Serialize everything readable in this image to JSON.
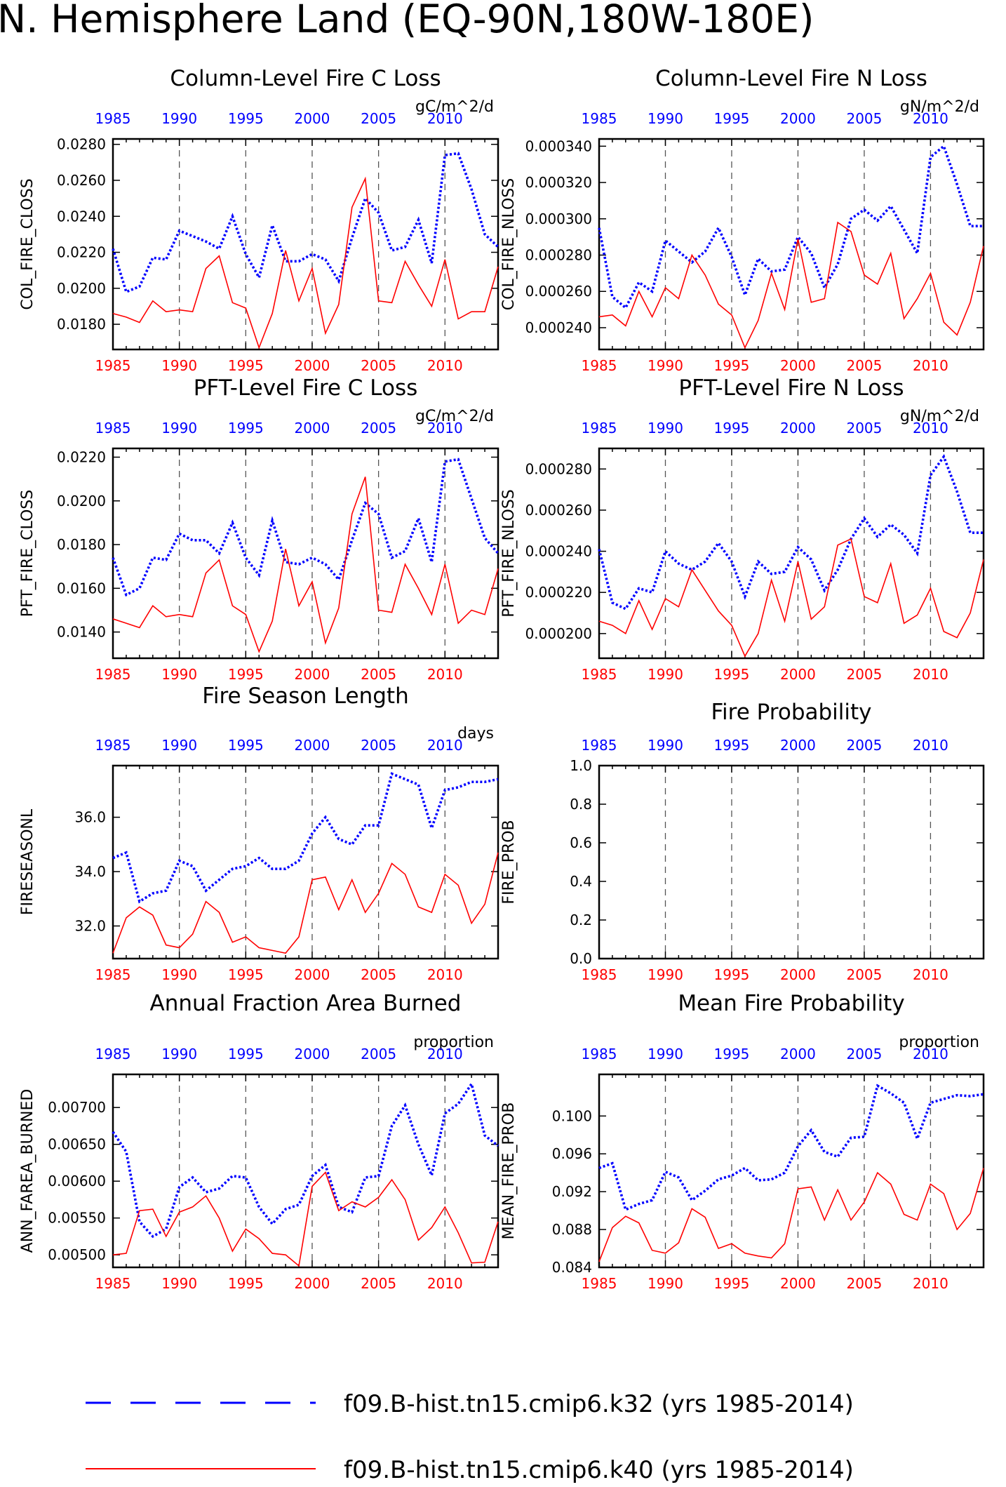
{
  "page_title": "N. Hemisphere Land (EQ-90N,180W-180E)",
  "colors": {
    "case1": "#0000ff",
    "case2": "#ff0000",
    "axis": "#000000",
    "grid": "#555555"
  },
  "legend": {
    "items": [
      {
        "label": "f09.B-hist.tn15.cmip6.k32 (yrs 1985-2014)",
        "color": "#0000ff",
        "style": "dashed"
      },
      {
        "label": "f09.B-hist.tn15.cmip6.k40 (yrs 1985-2014)",
        "color": "#ff0000",
        "style": "solid"
      }
    ]
  },
  "chart_data": [
    {
      "type": "line",
      "title": "Column-Level Fire C Loss",
      "ylabel": "COL_FIRE_CLOSS",
      "units": "gC/m^2/d",
      "xlim": [
        1985,
        2014
      ],
      "ylim": [
        0.0166,
        0.0283
      ],
      "yticks": [
        "0.0180",
        "0.0200",
        "0.0220",
        "0.0240",
        "0.0260",
        "0.0280"
      ],
      "xticks": [
        "1985",
        "1990",
        "1995",
        "2000",
        "2005",
        "2010"
      ],
      "grid": "dashed vertical at 1990, 1995, 2000, 2005, 2010",
      "x": [
        1985,
        1986,
        1987,
        1988,
        1989,
        1990,
        1991,
        1992,
        1993,
        1994,
        1995,
        1996,
        1997,
        1998,
        1999,
        2000,
        2001,
        2002,
        2003,
        2004,
        2005,
        2006,
        2007,
        2008,
        2009,
        2010,
        2011,
        2012,
        2013,
        2014
      ],
      "series": [
        {
          "values": [
            0.0222,
            0.0198,
            0.0201,
            0.0217,
            0.0216,
            0.0232,
            0.0229,
            0.0226,
            0.0222,
            0.024,
            0.0219,
            0.0206,
            0.0235,
            0.0215,
            0.0215,
            0.0219,
            0.0216,
            0.0204,
            0.0228,
            0.025,
            0.0242,
            0.0221,
            0.0223,
            0.0238,
            0.0214,
            0.0274,
            0.0275,
            0.0255,
            0.023,
            0.0223
          ]
        },
        {
          "values": [
            0.0186,
            0.0184,
            0.0181,
            0.0193,
            0.0187,
            0.0188,
            0.0187,
            0.0211,
            0.0218,
            0.0192,
            0.0189,
            0.0167,
            0.0186,
            0.0221,
            0.0193,
            0.0211,
            0.0175,
            0.0191,
            0.0245,
            0.0261,
            0.0193,
            0.0192,
            0.0215,
            0.0202,
            0.019,
            0.0216,
            0.0183,
            0.0187,
            0.0187,
            0.0212
          ]
        }
      ]
    },
    {
      "type": "line",
      "title": "Column-Level Fire N Loss",
      "ylabel": "COL_FIRE_NLOSS",
      "units": "gN/m^2/d",
      "xlim": [
        1985,
        2014
      ],
      "ylim": [
        0.000228,
        0.000344
      ],
      "yticks": [
        "0.000240",
        "0.000260",
        "0.000280",
        "0.000300",
        "0.000320",
        "0.000340"
      ],
      "xticks": [
        "1985",
        "1990",
        "1995",
        "2000",
        "2005",
        "2010"
      ],
      "grid": "dashed vertical at 1990, 1995, 2000, 2005, 2010",
      "x": [
        1985,
        1986,
        1987,
        1988,
        1989,
        1990,
        1991,
        1992,
        1993,
        1994,
        1995,
        1996,
        1997,
        1998,
        1999,
        2000,
        2001,
        2002,
        2003,
        2004,
        2005,
        2006,
        2007,
        2008,
        2009,
        2010,
        2011,
        2012,
        2013,
        2014
      ],
      "series": [
        {
          "values": [
            0.000295,
            0.000257,
            0.000251,
            0.000265,
            0.00026,
            0.000288,
            0.000282,
            0.000276,
            0.000282,
            0.000295,
            0.000279,
            0.000258,
            0.000278,
            0.000271,
            0.000272,
            0.00029,
            0.000281,
            0.000262,
            0.000275,
            0.0003,
            0.000305,
            0.000299,
            0.000307,
            0.000294,
            0.000281,
            0.000334,
            0.00034,
            0.000319,
            0.000296,
            0.000296
          ]
        },
        {
          "values": [
            0.000246,
            0.000247,
            0.000241,
            0.00026,
            0.000246,
            0.000262,
            0.000256,
            0.00028,
            0.000269,
            0.000253,
            0.000247,
            0.000229,
            0.000244,
            0.00027,
            0.00025,
            0.000289,
            0.000254,
            0.000256,
            0.000298,
            0.000293,
            0.000269,
            0.000264,
            0.000281,
            0.000245,
            0.000256,
            0.00027,
            0.000243,
            0.000236,
            0.000254,
            0.000285
          ]
        }
      ]
    },
    {
      "type": "line",
      "title": "PFT-Level Fire C Loss",
      "ylabel": "PFT_FIRE_CLOSS",
      "units": "gC/m^2/d",
      "xlim": [
        1985,
        2014
      ],
      "ylim": [
        0.0128,
        0.0224
      ],
      "yticks": [
        "0.0140",
        "0.0160",
        "0.0180",
        "0.0200",
        "0.0220"
      ],
      "xticks": [
        "1985",
        "1990",
        "1995",
        "2000",
        "2005",
        "2010"
      ],
      "grid": "dashed vertical at 1990, 1995, 2000, 2005, 2010",
      "x": [
        1985,
        1986,
        1987,
        1988,
        1989,
        1990,
        1991,
        1992,
        1993,
        1994,
        1995,
        1996,
        1997,
        1998,
        1999,
        2000,
        2001,
        2002,
        2003,
        2004,
        2005,
        2006,
        2007,
        2008,
        2009,
        2010,
        2011,
        2012,
        2013,
        2014
      ],
      "series": [
        {
          "values": [
            0.0174,
            0.0157,
            0.016,
            0.0174,
            0.0173,
            0.0185,
            0.0182,
            0.0182,
            0.0176,
            0.019,
            0.0174,
            0.0166,
            0.0191,
            0.0172,
            0.0171,
            0.0174,
            0.0171,
            0.0164,
            0.0182,
            0.0199,
            0.0194,
            0.0174,
            0.0177,
            0.0192,
            0.0172,
            0.0218,
            0.0219,
            0.0201,
            0.0183,
            0.0176
          ]
        },
        {
          "values": [
            0.0146,
            0.0144,
            0.0142,
            0.0152,
            0.0147,
            0.0148,
            0.0147,
            0.0167,
            0.0173,
            0.0152,
            0.0148,
            0.0131,
            0.0145,
            0.0178,
            0.0152,
            0.0163,
            0.0135,
            0.0151,
            0.0194,
            0.0211,
            0.015,
            0.0149,
            0.0171,
            0.016,
            0.0148,
            0.0171,
            0.0144,
            0.015,
            0.0148,
            0.0169
          ]
        }
      ]
    },
    {
      "type": "line",
      "title": "PFT-Level Fire N Loss",
      "ylabel": "PFT_FIRE_NLOSS",
      "units": "gN/m^2/d",
      "xlim": [
        1985,
        2014
      ],
      "ylim": [
        0.000188,
        0.00029
      ],
      "yticks": [
        "0.000200",
        "0.000220",
        "0.000240",
        "0.000260",
        "0.000280"
      ],
      "xticks": [
        "1985",
        "1990",
        "1995",
        "2000",
        "2005",
        "2010"
      ],
      "grid": "dashed vertical at 1990, 1995, 2000, 2005, 2010",
      "x": [
        1985,
        1986,
        1987,
        1988,
        1989,
        1990,
        1991,
        1992,
        1993,
        1994,
        1995,
        1996,
        1997,
        1998,
        1999,
        2000,
        2001,
        2002,
        2003,
        2004,
        2005,
        2006,
        2007,
        2008,
        2009,
        2010,
        2011,
        2012,
        2013,
        2014
      ],
      "series": [
        {
          "values": [
            0.000241,
            0.000215,
            0.000212,
            0.000222,
            0.00022,
            0.00024,
            0.000234,
            0.000231,
            0.000235,
            0.000244,
            0.000235,
            0.000218,
            0.000235,
            0.000229,
            0.00023,
            0.000242,
            0.000236,
            0.000221,
            0.000231,
            0.000246,
            0.000256,
            0.000247,
            0.000253,
            0.000248,
            0.000239,
            0.000277,
            0.000286,
            0.000269,
            0.000249,
            0.000249
          ]
        },
        {
          "values": [
            0.000206,
            0.000204,
            0.0002,
            0.000216,
            0.000202,
            0.000217,
            0.000213,
            0.000231,
            0.000221,
            0.000211,
            0.000204,
            0.000189,
            0.0002,
            0.000226,
            0.000206,
            0.000235,
            0.000207,
            0.000213,
            0.000243,
            0.000246,
            0.000218,
            0.000215,
            0.000234,
            0.000205,
            0.000209,
            0.000222,
            0.000201,
            0.000198,
            0.00021,
            0.000236
          ]
        }
      ]
    },
    {
      "type": "line",
      "title": "Fire Season Length",
      "ylabel": "FIRESEASONL",
      "units": "days",
      "xlim": [
        1985,
        2014
      ],
      "ylim": [
        30.8,
        37.9
      ],
      "yticks": [
        "32.0",
        "34.0",
        "36.0"
      ],
      "xticks": [
        "1985",
        "1990",
        "1995",
        "2000",
        "2005",
        "2010"
      ],
      "grid": "dashed vertical at 1990, 1995, 2000, 2005, 2010",
      "x": [
        1985,
        1986,
        1987,
        1988,
        1989,
        1990,
        1991,
        1992,
        1993,
        1994,
        1995,
        1996,
        1997,
        1998,
        1999,
        2000,
        2001,
        2002,
        2003,
        2004,
        2005,
        2006,
        2007,
        2008,
        2009,
        2010,
        2011,
        2012,
        2013,
        2014
      ],
      "series": [
        {
          "values": [
            34.5,
            34.7,
            32.9,
            33.2,
            33.3,
            34.4,
            34.2,
            33.3,
            33.7,
            34.1,
            34.2,
            34.5,
            34.1,
            34.1,
            34.4,
            35.4,
            36.0,
            35.2,
            35.0,
            35.7,
            35.7,
            37.6,
            37.4,
            37.2,
            35.6,
            37.0,
            37.1,
            37.3,
            37.3,
            37.4
          ]
        },
        {
          "values": [
            31.0,
            32.3,
            32.7,
            32.4,
            31.3,
            31.2,
            31.7,
            32.9,
            32.5,
            31.4,
            31.6,
            31.2,
            31.1,
            31.0,
            31.6,
            33.7,
            33.8,
            32.6,
            33.7,
            32.5,
            33.2,
            34.3,
            33.9,
            32.7,
            32.5,
            33.9,
            33.5,
            32.1,
            32.8,
            34.7
          ]
        }
      ]
    },
    {
      "type": "line",
      "title": "Fire Probability",
      "ylabel": "FIRE_PROB",
      "units": "",
      "xlim": [
        1985,
        2014
      ],
      "ylim": [
        0.0,
        1.0
      ],
      "yticks": [
        "0.0",
        "0.2",
        "0.4",
        "0.6",
        "0.8",
        "1.0"
      ],
      "xticks": [
        "1985",
        "1990",
        "1995",
        "2000",
        "2005",
        "2010"
      ],
      "grid": "dashed vertical at 1990, 1995, 2000, 2005, 2010",
      "x": [],
      "series": []
    },
    {
      "type": "line",
      "title": "Annual Fraction Area Burned",
      "ylabel": "ANN_FAREA_BURNED",
      "units": "proportion",
      "xlim": [
        1985,
        2014
      ],
      "ylim": [
        0.00483,
        0.00745
      ],
      "yticks": [
        "0.00500",
        "0.00550",
        "0.00600",
        "0.00650",
        "0.00700"
      ],
      "xticks": [
        "1985",
        "1990",
        "1995",
        "2000",
        "2005",
        "2010"
      ],
      "grid": "dashed vertical at 1990, 1995, 2000, 2005, 2010",
      "x": [
        1985,
        1986,
        1987,
        1988,
        1989,
        1990,
        1991,
        1992,
        1993,
        1994,
        1995,
        1996,
        1997,
        1998,
        1999,
        2000,
        2001,
        2002,
        2003,
        2004,
        2005,
        2006,
        2007,
        2008,
        2009,
        2010,
        2011,
        2012,
        2013,
        2014
      ],
      "series": [
        {
          "values": [
            0.00667,
            0.0064,
            0.00545,
            0.00525,
            0.00535,
            0.00592,
            0.00605,
            0.00585,
            0.0059,
            0.00607,
            0.00605,
            0.00565,
            0.00542,
            0.00562,
            0.00568,
            0.00607,
            0.00622,
            0.00565,
            0.00558,
            0.00605,
            0.00607,
            0.00675,
            0.00703,
            0.0065,
            0.00608,
            0.00692,
            0.00705,
            0.00732,
            0.00662,
            0.00648
          ]
        },
        {
          "values": [
            0.005,
            0.00502,
            0.0056,
            0.00562,
            0.00525,
            0.00558,
            0.00565,
            0.0058,
            0.0055,
            0.00505,
            0.00535,
            0.00522,
            0.00502,
            0.005,
            0.00485,
            0.00593,
            0.00612,
            0.0056,
            0.00572,
            0.00565,
            0.00578,
            0.00602,
            0.00575,
            0.0052,
            0.00537,
            0.00565,
            0.0053,
            0.00489,
            0.0049,
            0.00545
          ]
        }
      ]
    },
    {
      "type": "line",
      "title": "Mean Fire Probability",
      "ylabel": "MEAN_FIRE_PROB",
      "units": "proportion",
      "xlim": [
        1985,
        2014
      ],
      "ylim": [
        0.084,
        0.1044
      ],
      "yticks": [
        "0.084",
        "0.088",
        "0.092",
        "0.096",
        "0.100"
      ],
      "xticks": [
        "1985",
        "1990",
        "1995",
        "2000",
        "2005",
        "2010"
      ],
      "grid": "dashed vertical at 1990, 1995, 2000, 2005, 2010",
      "x": [
        1985,
        1986,
        1987,
        1988,
        1989,
        1990,
        1991,
        1992,
        1993,
        1994,
        1995,
        1996,
        1997,
        1998,
        1999,
        2000,
        2001,
        2002,
        2003,
        2004,
        2005,
        2006,
        2007,
        2008,
        2009,
        2010,
        2011,
        2012,
        2013,
        2014
      ],
      "series": [
        {
          "values": [
            0.0945,
            0.095,
            0.0901,
            0.0907,
            0.0911,
            0.0941,
            0.0935,
            0.0911,
            0.0921,
            0.0933,
            0.0937,
            0.0945,
            0.0932,
            0.0933,
            0.094,
            0.0968,
            0.0985,
            0.0962,
            0.0957,
            0.0977,
            0.0978,
            0.1032,
            0.1024,
            0.1014,
            0.0976,
            0.1014,
            0.1018,
            0.1022,
            0.1021,
            0.1023
          ]
        },
        {
          "values": [
            0.0846,
            0.0882,
            0.0894,
            0.0887,
            0.0858,
            0.0855,
            0.0866,
            0.0902,
            0.0893,
            0.086,
            0.0865,
            0.0855,
            0.0852,
            0.085,
            0.0865,
            0.0923,
            0.0925,
            0.089,
            0.0922,
            0.089,
            0.0909,
            0.094,
            0.0928,
            0.0896,
            0.089,
            0.0928,
            0.0918,
            0.088,
            0.0897,
            0.0945
          ]
        }
      ]
    }
  ]
}
